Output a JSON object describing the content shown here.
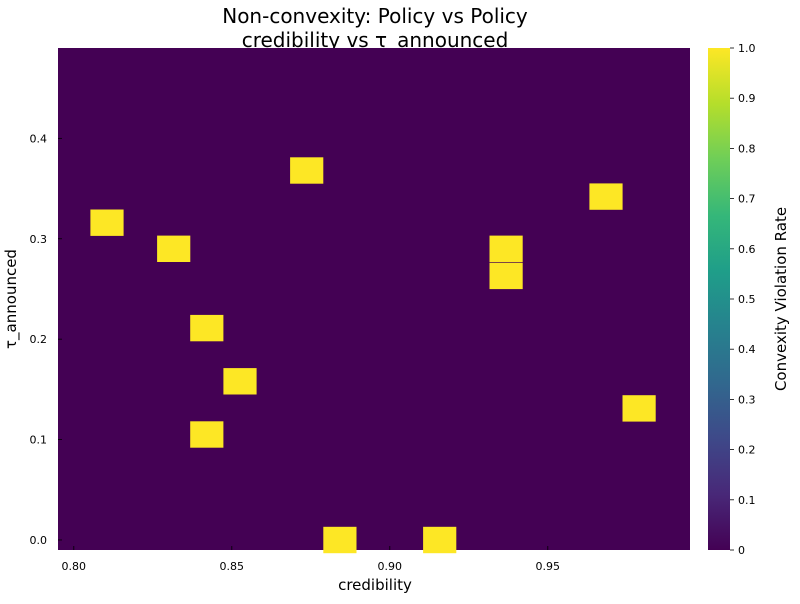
{
  "chart_data": {
    "type": "heatmap",
    "title_lines": [
      "Non-convexity: Policy vs Policy",
      "credibility vs τ_announced"
    ],
    "xlabel": "credibility",
    "ylabel": "τ_announced",
    "xlim": [
      0.795,
      0.995
    ],
    "ylim": [
      -0.01,
      0.49
    ],
    "x_ticks": [
      {
        "value": 0.8,
        "label": "0.80"
      },
      {
        "value": 0.85,
        "label": "0.85"
      },
      {
        "value": 0.9,
        "label": "0.90"
      },
      {
        "value": 0.95,
        "label": "0.95"
      }
    ],
    "y_ticks": [
      {
        "value": 0.0,
        "label": "0.0"
      },
      {
        "value": 0.1,
        "label": "0.1"
      },
      {
        "value": 0.2,
        "label": "0.2"
      },
      {
        "value": 0.3,
        "label": "0.3"
      },
      {
        "value": 0.4,
        "label": "0.4"
      }
    ],
    "cell_width": 0.0105,
    "cell_height": 0.0263,
    "background_value": 0,
    "cells": [
      {
        "x": 0.8105,
        "y": 0.316,
        "value": 1
      },
      {
        "x": 0.8316,
        "y": 0.29,
        "value": 1
      },
      {
        "x": 0.8421,
        "y": 0.211,
        "value": 1
      },
      {
        "x": 0.8421,
        "y": 0.105,
        "value": 1
      },
      {
        "x": 0.8526,
        "y": 0.158,
        "value": 1
      },
      {
        "x": 0.8737,
        "y": 0.368,
        "value": 1
      },
      {
        "x": 0.8842,
        "y": 0.0,
        "value": 1
      },
      {
        "x": 0.9158,
        "y": 0.0,
        "value": 1
      },
      {
        "x": 0.9368,
        "y": 0.263,
        "value": 1
      },
      {
        "x": 0.9368,
        "y": 0.29,
        "value": 1
      },
      {
        "x": 0.9684,
        "y": 0.342,
        "value": 1
      },
      {
        "x": 0.9789,
        "y": 0.131,
        "value": 1
      }
    ],
    "colorbar": {
      "label": "Convexity Violation Rate",
      "range": [
        0,
        1
      ],
      "ticks": [
        {
          "value": 0.0,
          "label": "0"
        },
        {
          "value": 0.1,
          "label": "0.1"
        },
        {
          "value": 0.2,
          "label": "0.2"
        },
        {
          "value": 0.3,
          "label": "0.3"
        },
        {
          "value": 0.4,
          "label": "0.4"
        },
        {
          "value": 0.5,
          "label": "0.5"
        },
        {
          "value": 0.6,
          "label": "0.6"
        },
        {
          "value": 0.7,
          "label": "0.7"
        },
        {
          "value": 0.8,
          "label": "0.8"
        },
        {
          "value": 0.9,
          "label": "0.9"
        },
        {
          "value": 1.0,
          "label": "1.0"
        }
      ],
      "colormap": "viridis",
      "colors": [
        "#440154",
        "#482878",
        "#3e4989",
        "#31688e",
        "#26828e",
        "#1f9e89",
        "#35b779",
        "#6ece58",
        "#b5de2b",
        "#fde725"
      ]
    },
    "grid": false,
    "legend": "none"
  }
}
